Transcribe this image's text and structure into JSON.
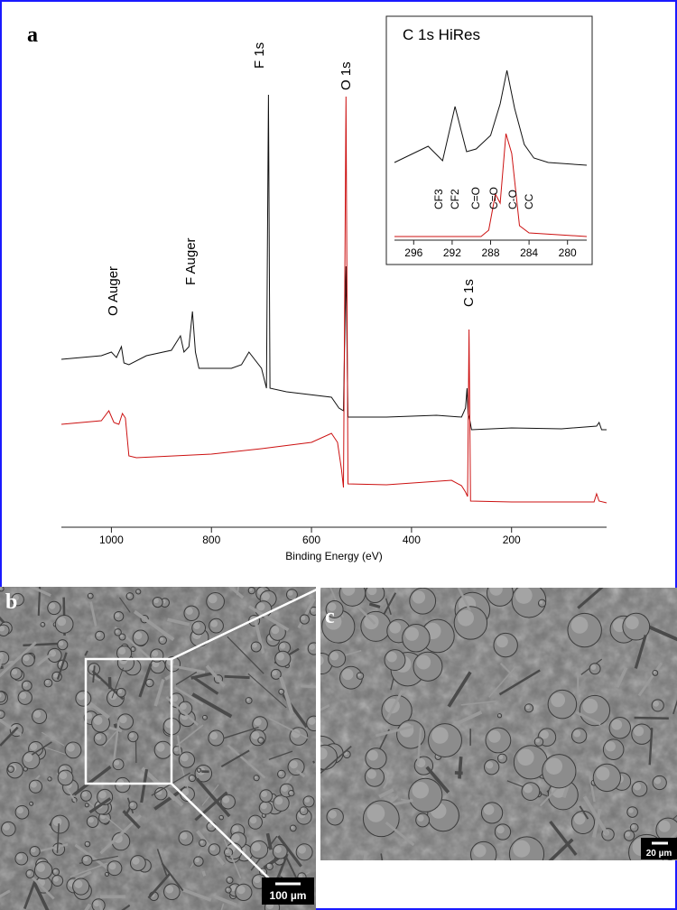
{
  "chart_data": [
    {
      "type": "line",
      "panel_label": "a",
      "xlabel": "Binding Energy (eV)",
      "xlim": [
        1100,
        10
      ],
      "ylim": [
        0,
        560
      ],
      "xticks": [
        1000,
        800,
        600,
        400,
        200
      ],
      "annotations": [
        "O Auger",
        "F Auger",
        "F 1s",
        "O 1s",
        "C 1s"
      ],
      "series": [
        {
          "color": "#111111",
          "x": [
            1100,
            1020,
            1000,
            990,
            980,
            975,
            965,
            930,
            880,
            862,
            855,
            845,
            838,
            832,
            825,
            760,
            740,
            725,
            700,
            690,
            686,
            683,
            650,
            560,
            545,
            536,
            531,
            527,
            450,
            350,
            300,
            292,
            289,
            287,
            284,
            280,
            200,
            100,
            30,
            25,
            20,
            10
          ],
          "values": [
            182,
            186,
            190,
            184,
            196,
            178,
            176,
            186,
            192,
            208,
            190,
            196,
            235,
            190,
            172,
            172,
            176,
            190,
            172,
            150,
            475,
            150,
            146,
            140,
            128,
            125,
            285,
            118,
            118,
            120,
            118,
            128,
            150,
            122,
            116,
            104,
            106,
            105,
            108,
            112,
            104,
            104
          ]
        },
        {
          "color": "#cc1111",
          "x": [
            1100,
            1020,
            1005,
            995,
            985,
            978,
            972,
            965,
            950,
            800,
            700,
            600,
            560,
            548,
            540,
            536,
            531,
            527,
            450,
            320,
            300,
            292,
            288,
            285,
            282,
            200,
            35,
            30,
            25,
            10
          ],
          "values": [
            110,
            114,
            125,
            112,
            110,
            122,
            117,
            75,
            73,
            77,
            83,
            90,
            100,
            90,
            60,
            40,
            473,
            44,
            43,
            48,
            42,
            35,
            30,
            215,
            25,
            24,
            24,
            33,
            25,
            23
          ]
        }
      ]
    },
    {
      "type": "line",
      "title": "C 1s HiRes",
      "xlim": [
        298,
        278
      ],
      "ylim": [
        0,
        250
      ],
      "xticks": [
        296,
        292,
        288,
        284,
        280
      ],
      "annotations": [
        "CF3",
        "CF2",
        "C=O",
        "C=O",
        "C-O",
        "CC"
      ],
      "series": [
        {
          "color": "#111111",
          "x": [
            298,
            294.5,
            293,
            291.7,
            290.5,
            289.5,
            288,
            287,
            286.3,
            285.5,
            284.5,
            283.5,
            282,
            278
          ],
          "values": [
            85,
            103,
            87,
            147,
            97,
            100,
            115,
            150,
            187,
            145,
            105,
            90,
            85,
            82
          ]
        },
        {
          "color": "#cc1111",
          "x": [
            298,
            289,
            288.2,
            287.5,
            287,
            286.4,
            285.8,
            285,
            284,
            278
          ],
          "values": [
            3,
            3,
            10,
            50,
            40,
            117,
            95,
            15,
            7,
            3
          ]
        }
      ]
    }
  ],
  "panels": [
    {
      "label": "b",
      "scale_bar": "100 µm"
    },
    {
      "label": "c",
      "scale_bar": "20 µm"
    }
  ]
}
